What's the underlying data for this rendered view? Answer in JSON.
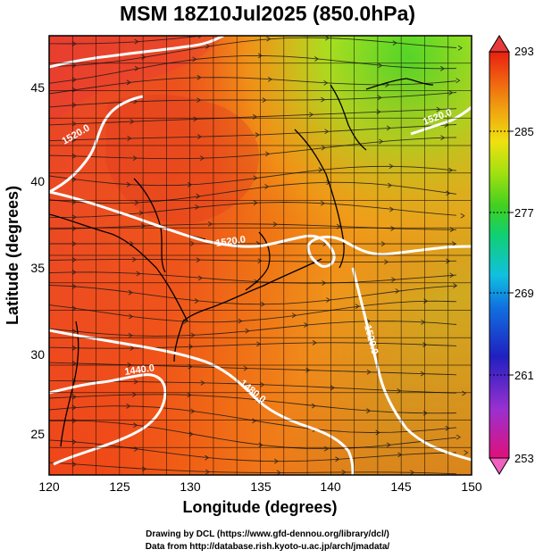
{
  "title": "MSM 18Z10Jul2025 (850.0hPa)",
  "map": {
    "lon_range": [
      120,
      150
    ],
    "lat_range": [
      22.4,
      47.6
    ],
    "x_ticks": [
      "120",
      "125",
      "130",
      "135",
      "140",
      "145",
      "150"
    ],
    "y_ticks": [
      "25",
      "30",
      "35",
      "40",
      "45"
    ],
    "xlabel": "Longitude (degrees)",
    "ylabel": "Latitude  (degrees)",
    "grid": true,
    "contour_labels": [
      "1520.0",
      "1520.0",
      "1440.0",
      "1480.0",
      "1520.0",
      "1520.0"
    ]
  },
  "colorbar": {
    "ticks": [
      "293",
      "285",
      "277",
      "269",
      "261",
      "253"
    ],
    "colors": [
      "#e0107a",
      "#9a30d0",
      "#2020c0",
      "#1070e0",
      "#10c0e0",
      "#10d070",
      "#40d020",
      "#a0e010",
      "#f0e010",
      "#f0a010",
      "#f06010",
      "#e82010"
    ]
  },
  "credits": {
    "line1": "Drawing by DCL (https://www.gfd-dennou.org/library/dcl/)",
    "line2": "Data from http://database.rish.kyoto-u.ac.jp/arch/jmadata/"
  }
}
